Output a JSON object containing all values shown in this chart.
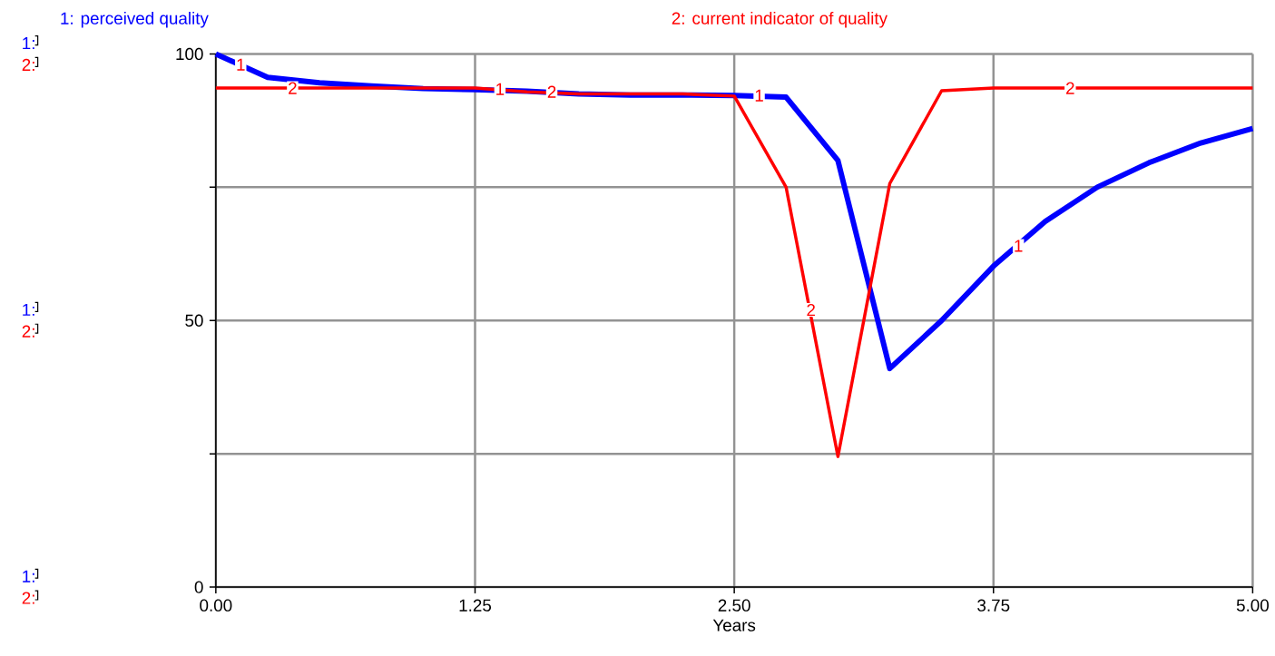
{
  "chart_data": {
    "type": "line",
    "xlabel": "Years",
    "x": [
      0,
      0.25,
      0.5,
      0.75,
      1.0,
      1.25,
      1.5,
      1.75,
      2.0,
      2.25,
      2.5,
      2.75,
      3.0,
      3.25,
      3.5,
      3.75,
      4.0,
      4.25,
      4.5,
      4.75,
      5.0
    ],
    "series": [
      {
        "name": "1: perceived quality",
        "color": "#0000ff",
        "values": [
          100,
          95.6,
          94.6,
          94,
          93.5,
          93.3,
          93,
          92.5,
          92.3,
          92.3,
          92.2,
          91.9,
          80,
          41,
          50,
          60.2,
          68.6,
          75,
          79.6,
          83.3,
          86
        ]
      },
      {
        "name": "2: current indicator of quality",
        "color": "#ff0000",
        "values": [
          93.6,
          93.6,
          93.6,
          93.6,
          93.6,
          93.6,
          92.9,
          92.5,
          92.5,
          92.5,
          92.1,
          75,
          24.5,
          75.7,
          93.1,
          93.6,
          93.6,
          93.6,
          93.6,
          93.6,
          93.6
        ]
      }
    ],
    "xlim": [
      0,
      5
    ],
    "ylim": [
      0,
      100
    ],
    "xticks": [
      {
        "value": 0,
        "label": "0.00"
      },
      {
        "value": 1.25,
        "label": "1.25"
      },
      {
        "value": 2.5,
        "label": "2.50"
      },
      {
        "value": 3.75,
        "label": "3.75"
      },
      {
        "value": 5,
        "label": "5.00"
      }
    ],
    "yticks": [
      0,
      {
        "value": 25,
        "label": null
      },
      50,
      {
        "value": 75,
        "label": null
      },
      100
    ],
    "grid": true,
    "legend": "top",
    "marker": "none",
    "line_style": "solid",
    "annotations": [
      "1:",
      "2:",
      "1:",
      "2:",
      "1:",
      "2:",
      {
        "text": "1",
        "x": 0.12,
        "y": 98
      },
      {
        "text": "2",
        "x": 0.37,
        "y": 93.6
      },
      {
        "text": "1",
        "x": 1.37,
        "y": 93.4
      },
      {
        "text": "2",
        "x": 1.62,
        "y": 92.9
      },
      {
        "text": "1",
        "x": 2.62,
        "y": 92.2
      },
      {
        "text": "2",
        "x": 2.87,
        "y": 52
      },
      {
        "text": "1",
        "x": 3.87,
        "y": 64
      },
      {
        "text": "2",
        "x": 4.12,
        "y": 93.6
      }
    ]
  }
}
